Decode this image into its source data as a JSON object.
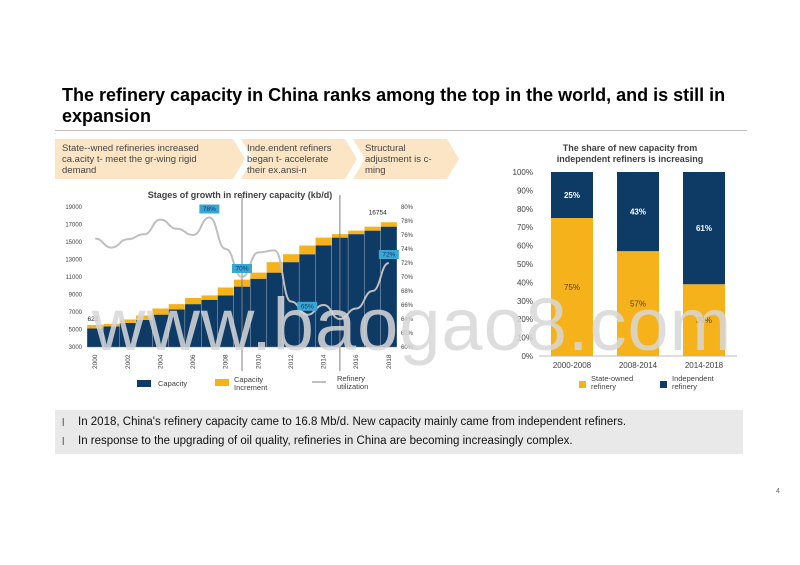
{
  "title": "The refinery capacity in China ranks among the top in the world, and is still in expansion",
  "stages": [
    {
      "text": "State--wned refineries increased ca.acity t- meet the gr-wing rigid demand"
    },
    {
      "text": "Inde.endent refiners began t- accelerate their ex.ansi-n"
    },
    {
      "text": "Structural adjustment is c-ming"
    }
  ],
  "chart_data": [
    {
      "type": "bar",
      "title": "Stages of growth in refinery capacity (kb/d)",
      "x": [
        "2000",
        "2001",
        "2002",
        "2003",
        "2004",
        "2005",
        "2006",
        "2007",
        "2008",
        "2009",
        "2010",
        "2011",
        "2012",
        "2013",
        "2014",
        "2015",
        "2016",
        "2017",
        "2018"
      ],
      "x_tick_labels": [
        "2000",
        "2002",
        "2004",
        "2006",
        "2008",
        "2010",
        "2012",
        "2014",
        "2016",
        "2018"
      ],
      "series": [
        {
          "name": "Capacity",
          "color": "#0e3a66",
          "values": [
            5120,
            5350,
            5750,
            6100,
            6700,
            7300,
            7900,
            8400,
            8900,
            9900,
            10800,
            11500,
            12700,
            13600,
            14600,
            15500,
            15900,
            16300,
            16754
          ]
        },
        {
          "name": "Capacity increment",
          "color": "#f6b21b",
          "values": [
            400,
            300,
            400,
            500,
            700,
            600,
            700,
            500,
            900,
            800,
            700,
            1200,
            900,
            1000,
            900,
            400,
            400,
            454,
            500
          ]
        },
        {
          "name": "Refinery utilization",
          "color": "#bfbfbf",
          "axis": "right",
          "values": [
            75.5,
            74.2,
            75.4,
            76.1,
            78.2,
            76.9,
            76.0,
            78.5,
            74.0,
            70.0,
            73.5,
            73.8,
            66.5,
            64.6,
            66.0,
            64.0,
            65.5,
            68.0,
            72.0
          ]
        }
      ],
      "ylim": [
        3000,
        19000
      ],
      "y_ticks": [
        "19000",
        "17000",
        "15000",
        "13000",
        "11000",
        "9000",
        "7000",
        "5000",
        "3000"
      ],
      "y2lim": [
        60,
        80
      ],
      "y2_ticks": [
        "80%",
        "78%",
        "76%",
        "74%",
        "72%",
        "70%",
        "68%",
        "66%",
        "64%",
        "62%",
        "60%"
      ],
      "data_labels": [
        "622",
        "16754"
      ],
      "callouts": [
        "78%",
        "70%",
        "65%",
        "72%"
      ],
      "stage_dividers": [
        "2009",
        "2015"
      ]
    },
    {
      "type": "bar",
      "stacked": true,
      "title": "The share of new capacity from independent refiners is increasing",
      "categories": [
        "2000-2008",
        "2008-2014",
        "2014-2018"
      ],
      "series": [
        {
          "name": "State-owned refinery",
          "color": "#f6b21b",
          "values": [
            75,
            57,
            39
          ]
        },
        {
          "name": "Independent refinery",
          "color": "#0e3a66",
          "values": [
            25,
            43,
            61
          ]
        }
      ],
      "ylim": [
        0,
        100
      ],
      "y_ticks": [
        "100%",
        "90%",
        "80%",
        "70%",
        "60%",
        "50%",
        "40%",
        "30%",
        "20%",
        "10%",
        "0%"
      ],
      "data_labels": [
        [
          "75%",
          "25%"
        ],
        [
          "57%",
          "43%"
        ],
        [
          "39%",
          "61%"
        ]
      ]
    }
  ],
  "legend": {
    "capacity": "Capacity",
    "increment_line1": "Capacity",
    "increment_line2": "Increment",
    "util_line1": "Refinery",
    "util_line2": "utilization",
    "state_line1": "State-owned",
    "state_line2": "refinery",
    "indep_line1": "Independent",
    "indep_line2": "refinery"
  },
  "watermark": "www.baogao8.com",
  "notes": [
    "In 2018, China's refinery capacity came to 16.8 Mb/d. New capacity mainly came from independent refiners.",
    "In response to the upgrading of oil quality, refineries in China are becoming increasingly complex."
  ],
  "bullet_glyph": "l",
  "page_number": "4",
  "colors": {
    "navy": "#0e3a66",
    "gold": "#f6b21b",
    "chevron": "#fbe5c4",
    "callout": "#39a6d4",
    "note_bg": "#e9e9e9"
  }
}
